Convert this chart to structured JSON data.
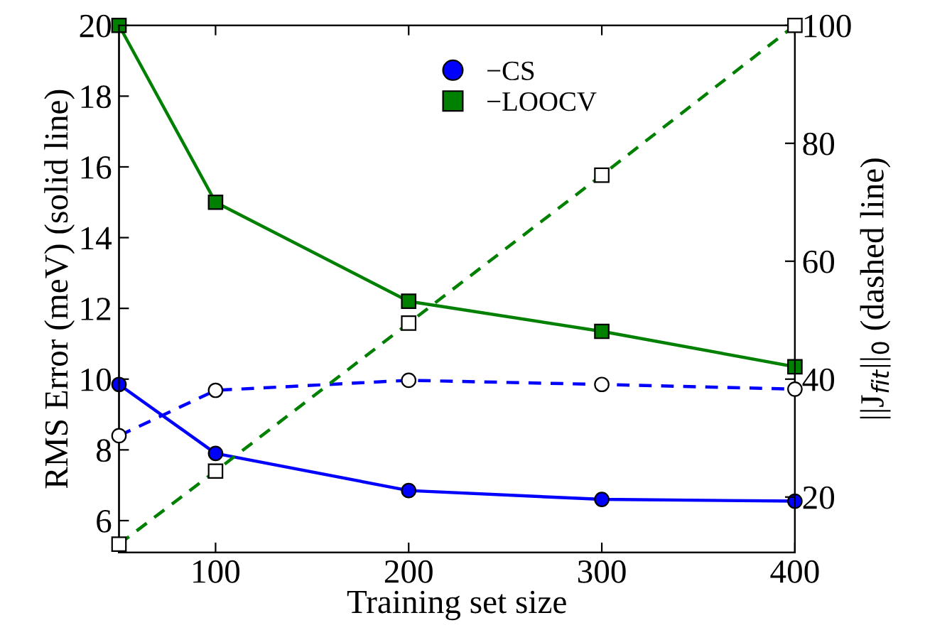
{
  "chart_data": {
    "type": "line",
    "xlabel": "Training set size",
    "ylabel": "RMS Error (meV) (solid line)",
    "y2label": "||J$_{fit}$||$_{0}$ (dashed line)",
    "x": [
      50,
      100,
      200,
      300,
      400
    ],
    "xlim": [
      50,
      400
    ],
    "xticks": [
      100,
      200,
      300,
      400
    ],
    "ylim": [
      5.1,
      20
    ],
    "yticks": [
      6,
      8,
      10,
      12,
      14,
      16,
      18,
      20
    ],
    "y2lim": [
      10.6,
      100
    ],
    "y2ticks": [
      20,
      40,
      60,
      80,
      100
    ],
    "legend": "top",
    "grid": false,
    "series": [
      {
        "name": "−CS",
        "color": "#0000ff",
        "values": [
          9.85,
          7.9,
          6.85,
          6.6,
          6.55
        ],
        "marker": "circle",
        "line_style": "solid"
      },
      {
        "name": "−LOOCV",
        "color": "#008000",
        "values": [
          20,
          15,
          12.2,
          11.35,
          10.35
        ],
        "marker": "square",
        "line_style": "solid"
      },
      {
        "color": "#0000ff",
        "values": [
          30.4,
          38.1,
          39.8,
          39.1,
          38.3
        ],
        "axis": "y2",
        "marker": "circle",
        "line_style": "dashed"
      },
      {
        "color": "#008000",
        "values": [
          12,
          24.4,
          49.5,
          74.6,
          100
        ],
        "axis": "y2",
        "marker": "square",
        "line_style": "dashed"
      }
    ]
  }
}
